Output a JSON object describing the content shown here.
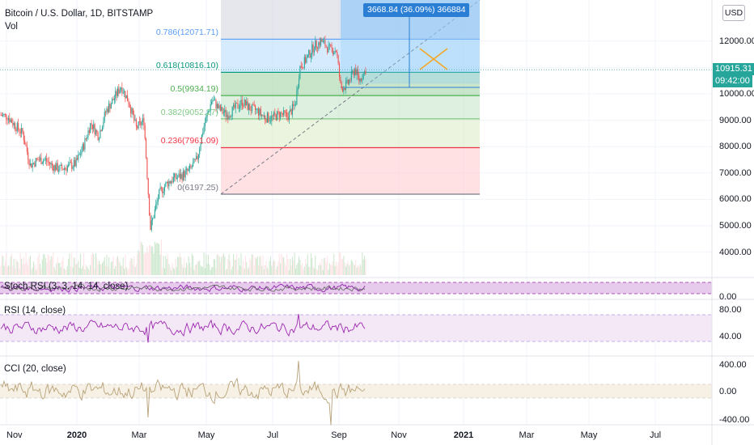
{
  "header": {
    "title": "Bitcoin / U.S. Dollar, 1D, BITSTAMP",
    "volume_label": "Vol",
    "currency_button": "USD"
  },
  "price_tags": {
    "last_price": "10915.31",
    "countdown": "09:42:00",
    "colors": {
      "last_price": "#26a69a",
      "countdown": "#26a69a"
    }
  },
  "measure": {
    "label": "3668.84 (36.09%) 366884",
    "color": "#2a7fd4"
  },
  "fibonacci": {
    "levels": [
      {
        "label": "0.786(12071.71)",
        "value": 12071.71,
        "color": "#5b9cf6"
      },
      {
        "label": "0.618(10816.10)",
        "value": 10816.1,
        "color": "#089981"
      },
      {
        "label": "0.5(9934.19)",
        "value": 9934.19,
        "color": "#4caf50"
      },
      {
        "label": "0.382(9052.27)",
        "value": 9052.27,
        "color": "#81c784"
      },
      {
        "label": "0.236(7961.09)",
        "value": 7961.09,
        "color": "#f23645"
      },
      {
        "label": "0(6197.25)",
        "value": 6197.25,
        "color": "#787b86"
      }
    ]
  },
  "indicators": {
    "stoch_rsi": {
      "label": "Stoch RSI (3, 3, 14, 14, close)",
      "axis": [
        "0.00"
      ]
    },
    "rsi": {
      "label": "RSI (14, close)",
      "axis": [
        "80.00",
        "40.00"
      ]
    },
    "cci": {
      "label": "CCI (20, close)",
      "axis": [
        "400.00",
        "0.00",
        "-400.00"
      ]
    }
  },
  "chart_data": {
    "type": "candlestick",
    "title": "Bitcoin / U.S. Dollar, 1D, BITSTAMP",
    "y_axis_ticks": [
      12000,
      11000,
      10000,
      9000,
      8000,
      7000,
      6000,
      5000,
      4000
    ],
    "y_axis_labels": [
      "12000.00",
      "11000.00",
      "10000.00",
      "9000.00",
      "8000.00",
      "7000.00",
      "6000.00",
      "5000.00",
      "4000.00"
    ],
    "ylim": [
      3200,
      13100
    ],
    "x_axis_labels": [
      "Nov",
      "2020",
      "Mar",
      "May",
      "Jul",
      "Sep",
      "Nov",
      "2021",
      "Mar",
      "May",
      "Jul"
    ],
    "close_path": [
      [
        "2019-10-25",
        9200
      ],
      [
        "2019-11-01",
        9150
      ],
      [
        "2019-11-08",
        8800
      ],
      [
        "2019-11-15",
        8500
      ],
      [
        "2019-11-22",
        7300
      ],
      [
        "2019-11-29",
        7500
      ],
      [
        "2019-12-06",
        7500
      ],
      [
        "2019-12-13",
        7250
      ],
      [
        "2019-12-20",
        7150
      ],
      [
        "2019-12-27",
        7250
      ],
      [
        "2020-01-03",
        7350
      ],
      [
        "2020-01-10",
        8000
      ],
      [
        "2020-01-17",
        8900
      ],
      [
        "2020-01-24",
        8400
      ],
      [
        "2020-01-31",
        9350
      ],
      [
        "2020-02-07",
        9800
      ],
      [
        "2020-02-14",
        10300
      ],
      [
        "2020-02-21",
        9700
      ],
      [
        "2020-02-28",
        8700
      ],
      [
        "2020-03-06",
        9000
      ],
      [
        "2020-03-12",
        4900
      ],
      [
        "2020-03-20",
        6200
      ],
      [
        "2020-03-27",
        6600
      ],
      [
        "2020-04-03",
        6800
      ],
      [
        "2020-04-10",
        6900
      ],
      [
        "2020-04-17",
        7100
      ],
      [
        "2020-04-24",
        7500
      ],
      [
        "2020-04-30",
        8700
      ],
      [
        "2020-05-08",
        9800
      ],
      [
        "2020-05-15",
        9400
      ],
      [
        "2020-05-22",
        9200
      ],
      [
        "2020-05-29",
        9450
      ],
      [
        "2020-06-05",
        9700
      ],
      [
        "2020-06-12",
        9450
      ],
      [
        "2020-06-19",
        9350
      ],
      [
        "2020-06-26",
        9100
      ],
      [
        "2020-07-03",
        9100
      ],
      [
        "2020-07-10",
        9250
      ],
      [
        "2020-07-17",
        9150
      ],
      [
        "2020-07-24",
        9600
      ],
      [
        "2020-07-28",
        11000
      ],
      [
        "2020-08-03",
        11300
      ],
      [
        "2020-08-10",
        11800
      ],
      [
        "2020-08-17",
        12000
      ],
      [
        "2020-08-24",
        11700
      ],
      [
        "2020-08-31",
        11650
      ],
      [
        "2020-09-04",
        10200
      ],
      [
        "2020-09-10",
        10350
      ],
      [
        "2020-09-17",
        10950
      ],
      [
        "2020-09-21",
        10500
      ],
      [
        "2020-09-27",
        10915
      ]
    ]
  }
}
